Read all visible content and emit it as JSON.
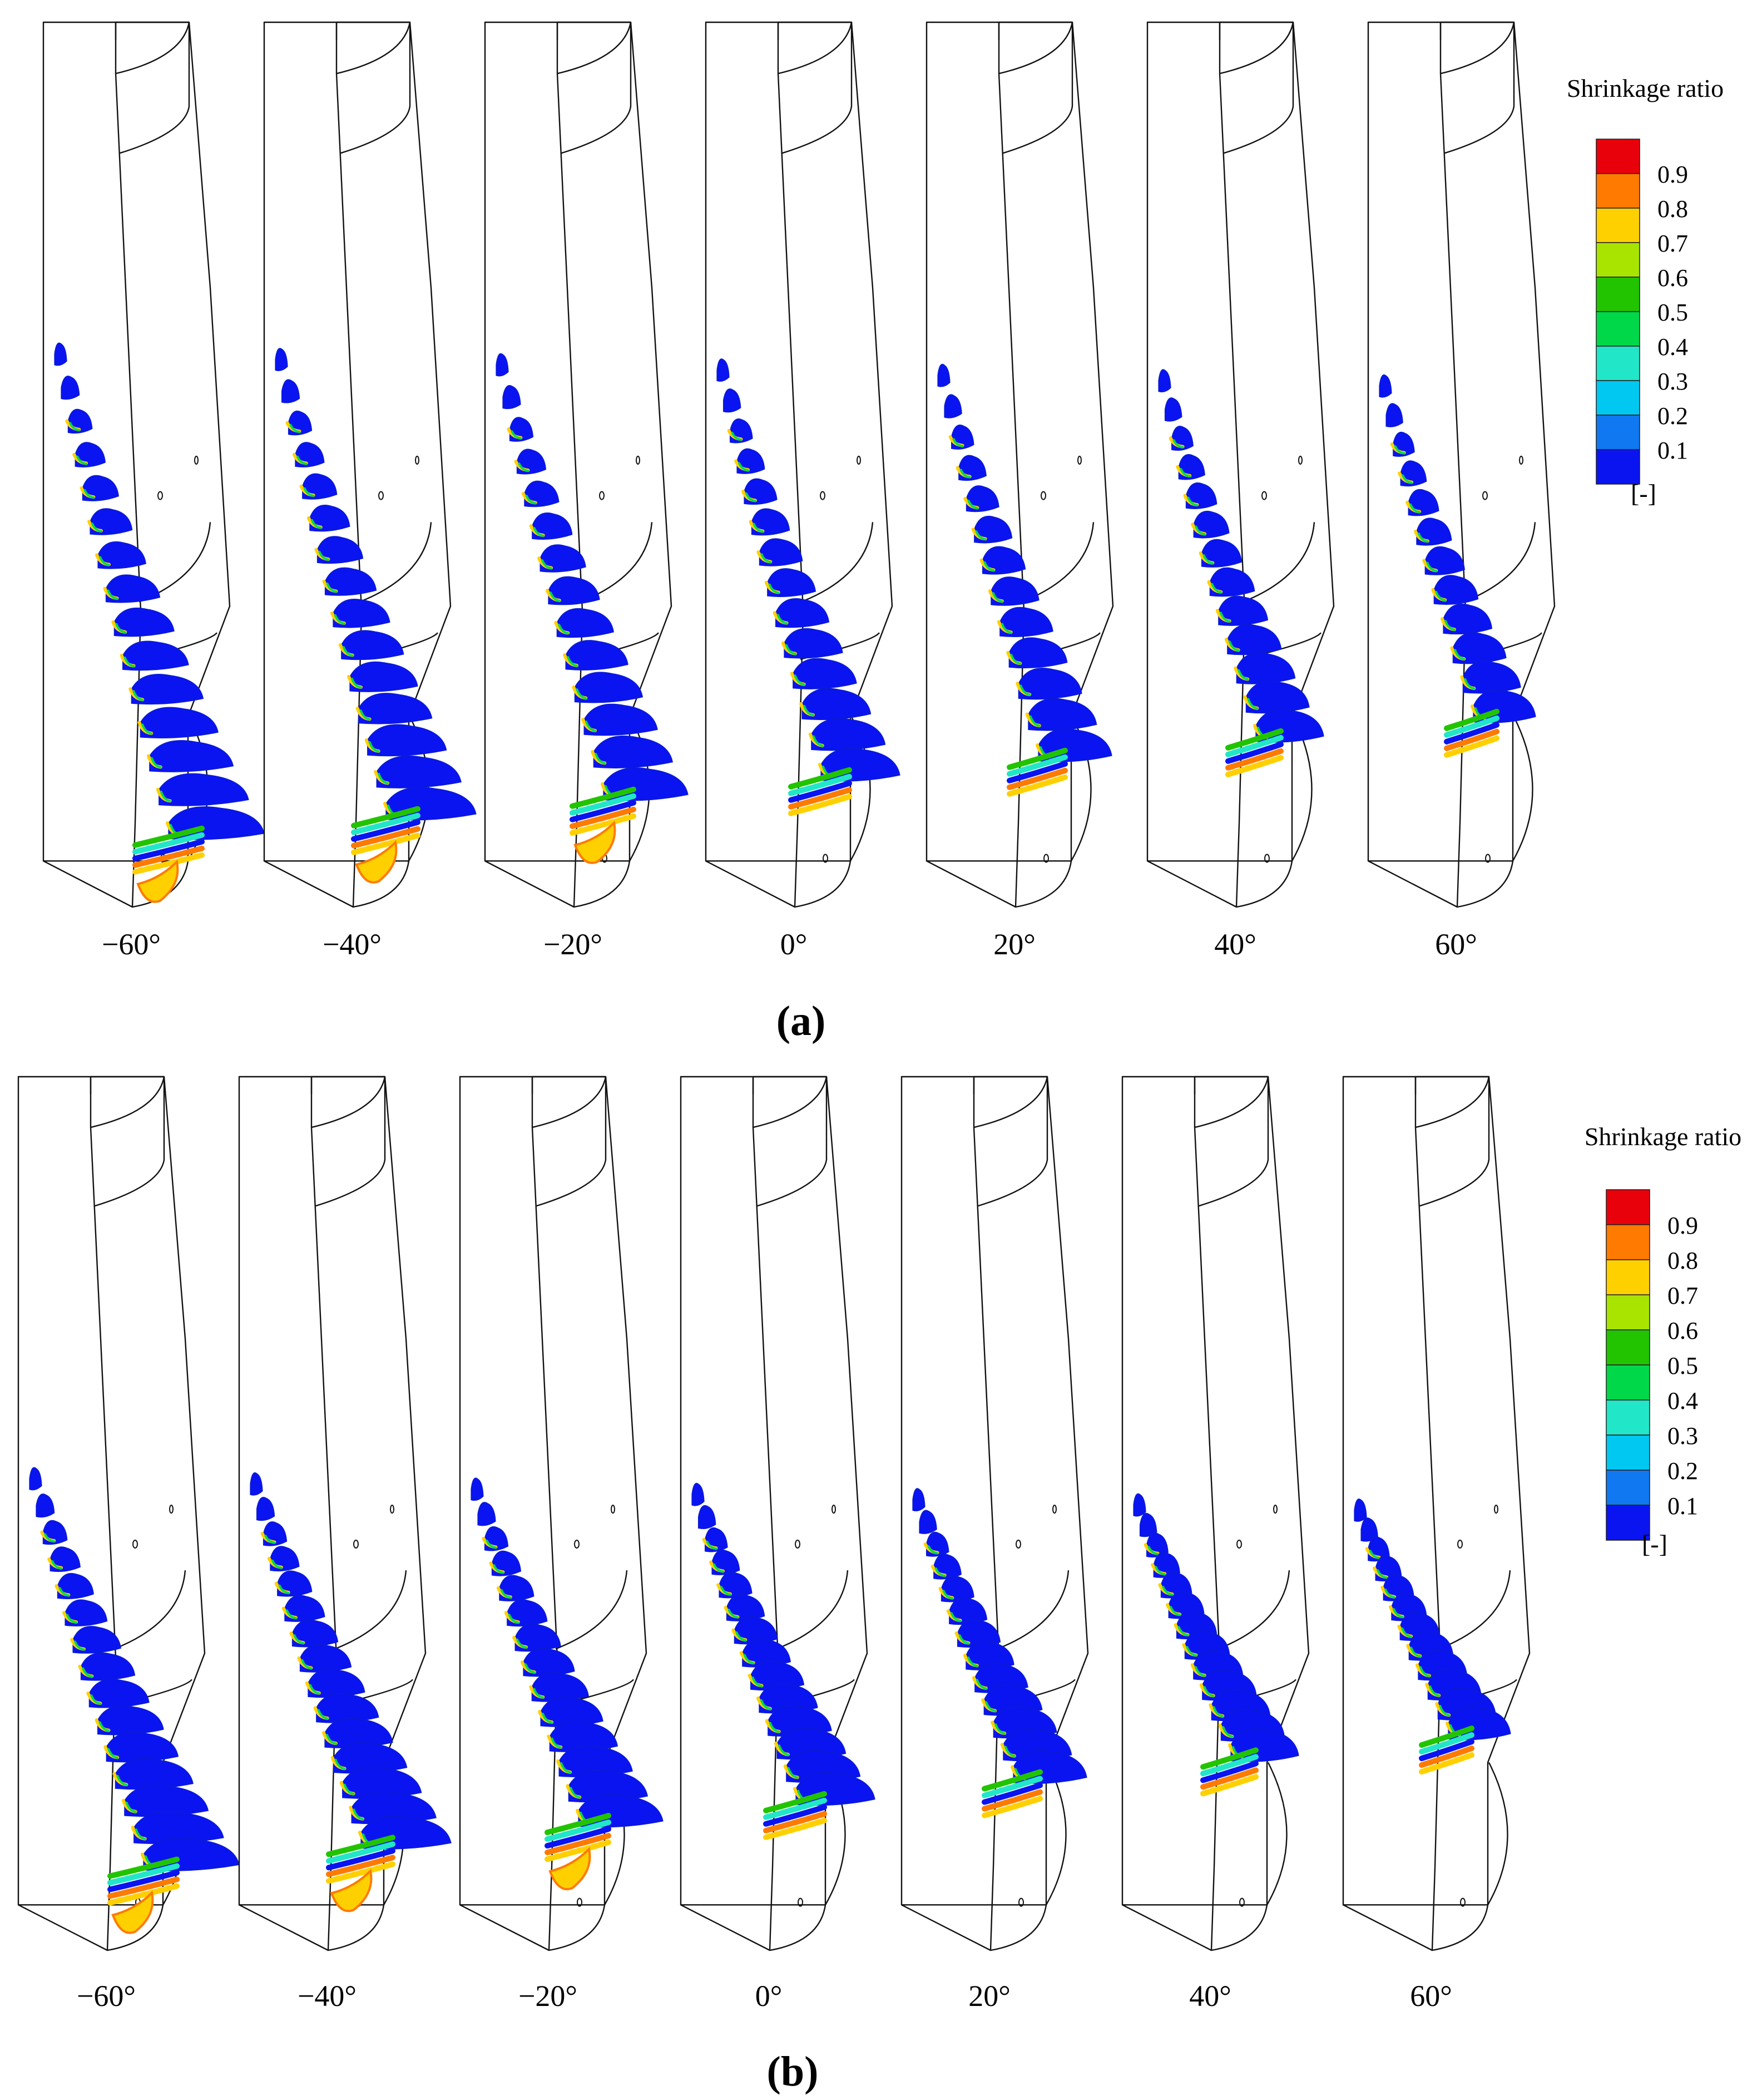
{
  "panels": [
    {
      "id": "a",
      "label": "(a)",
      "angles": [
        "−60°",
        "−40°",
        "−20°",
        "0°",
        "20°",
        "40°",
        "60°"
      ],
      "legend": {
        "title": "Shrinkage ratio",
        "unit": "[-]"
      }
    },
    {
      "id": "b",
      "label": "(b)",
      "angles": [
        "−60°",
        "−40°",
        "−20°",
        "0°",
        "20°",
        "40°",
        "60°"
      ],
      "legend": {
        "title": "Shrinkage ratio",
        "unit": "[-]"
      }
    }
  ],
  "colorbar": {
    "ticks": [
      "0.9",
      "0.8",
      "0.7",
      "0.6",
      "0.5",
      "0.4",
      "0.3",
      "0.2",
      "0.1"
    ],
    "colors": [
      "#e8000b",
      "#ff7a00",
      "#ffd000",
      "#a8e400",
      "#22c400",
      "#00d84a",
      "#22e6c8",
      "#00c8f0",
      "#1078f0",
      "#0a14f0"
    ]
  }
}
